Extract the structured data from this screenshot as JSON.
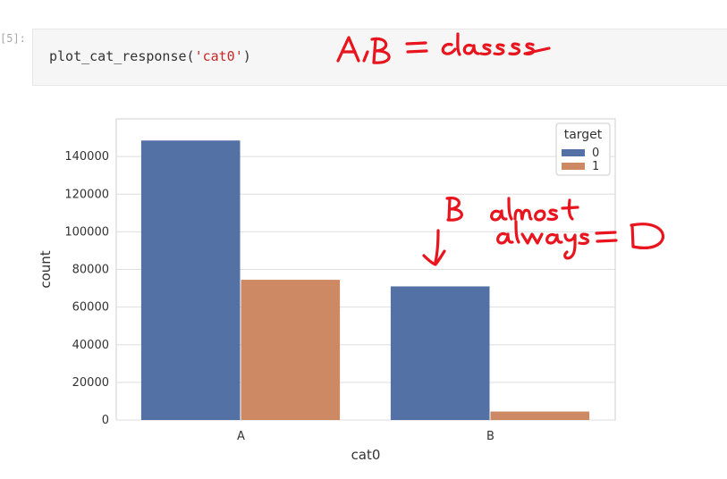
{
  "cell": {
    "prompt": "[5]:",
    "code_func": "plot_cat_response(",
    "code_arg": "'cat0'",
    "code_close": ")"
  },
  "annotations": [
    "A, B = class",
    "B almost always = 0"
  ],
  "chart_data": {
    "type": "bar",
    "title": "",
    "xlabel": "cat0",
    "ylabel": "count",
    "categories": [
      "A",
      "B"
    ],
    "ylim": [
      0,
      160000
    ],
    "yticks": [
      0,
      20000,
      40000,
      60000,
      80000,
      100000,
      120000,
      140000
    ],
    "ytick_labels": [
      "0",
      "20000",
      "40000",
      "60000",
      "80000",
      "100000",
      "120000",
      "140000"
    ],
    "grid": true,
    "legend": {
      "title": "target",
      "placement": "top-right"
    },
    "series": [
      {
        "name": "0",
        "color": "#5471a5",
        "values": [
          148500,
          71000
        ]
      },
      {
        "name": "1",
        "color": "#cc8963",
        "values": [
          74500,
          4500
        ]
      }
    ]
  }
}
